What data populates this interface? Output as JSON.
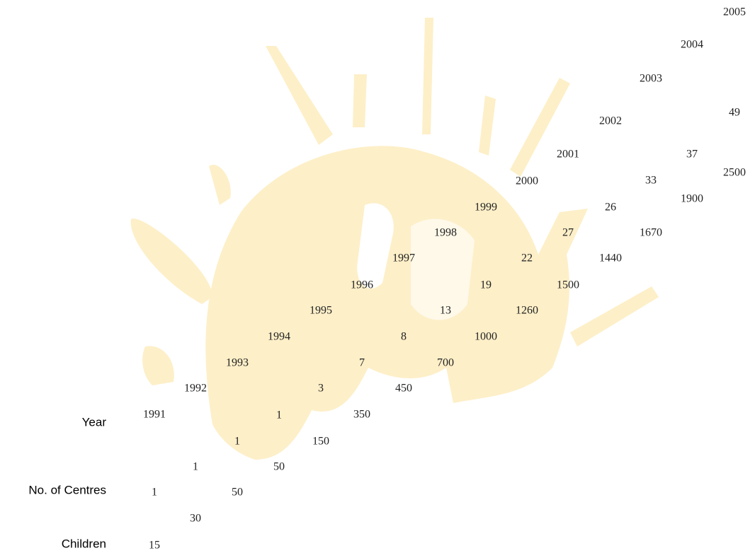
{
  "row_labels": [
    "Year",
    "No. of Centres",
    "Children"
  ],
  "years": [
    1991,
    1992,
    1993,
    1994,
    1995,
    1996,
    1997,
    1998,
    1999,
    2000,
    2001,
    2002,
    2003,
    2004,
    2005
  ],
  "centres": [
    1,
    1,
    1,
    1,
    3,
    7,
    8,
    13,
    19,
    22,
    27,
    26,
    33,
    37,
    49
  ],
  "children": [
    15,
    30,
    50,
    50,
    150,
    350,
    450,
    700,
    1000,
    1260,
    1500,
    1440,
    1670,
    1900,
    2500
  ]
}
